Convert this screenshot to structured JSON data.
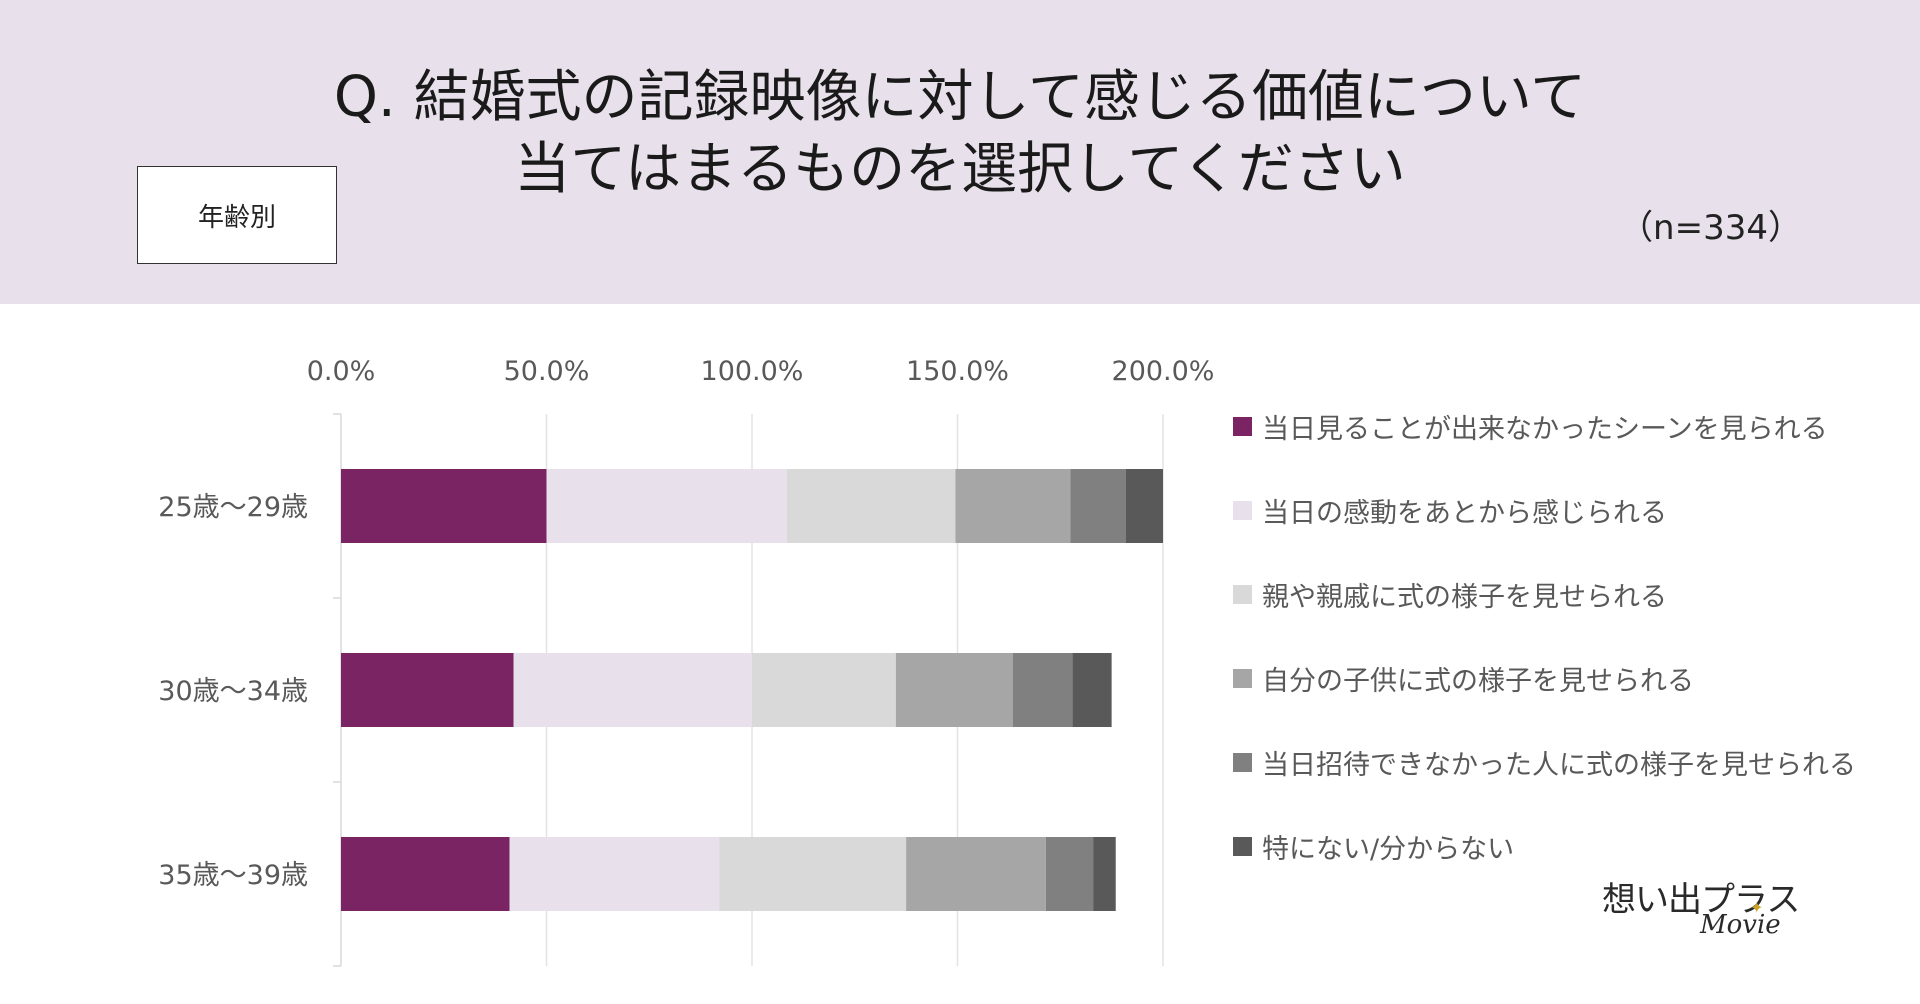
{
  "header": {
    "title_line1": "Q. 結婚式の記録映像に対して感じる価値について",
    "title_line2": "当てはまるものを選択してください",
    "filter_label": "年齢別",
    "sample_size": "（n=334）",
    "background_color": "#e8e1eb"
  },
  "logo": {
    "main_text": "想い出プラス",
    "sub_text": "Movie",
    "star_icon": "sparkle-icon"
  },
  "chart_data": {
    "type": "bar",
    "orientation": "horizontal",
    "stacked": true,
    "xlim": [
      0,
      200
    ],
    "x_ticks": [
      0,
      50,
      100,
      150,
      200
    ],
    "x_tick_labels": [
      "0.0%",
      "50.0%",
      "100.0%",
      "150.0%",
      "200.0%"
    ],
    "x_axis_position": "top",
    "grid": true,
    "legend_position": "right",
    "categories": [
      "25歳～29歳",
      "30歳～34歳",
      "35歳～39歳"
    ],
    "series": [
      {
        "name": "当日見ることが出来なかったシーンを見られる",
        "color": "#7b2464",
        "values": [
          50.0,
          42.0,
          41.0
        ]
      },
      {
        "name": "当日の感動をあとから感じられる",
        "color": "#e8e0eb",
        "values": [
          58.5,
          58.0,
          51.0
        ]
      },
      {
        "name": "親や親戚に式の様子を見せられる",
        "color": "#d9d9d9",
        "values": [
          41.0,
          35.0,
          45.5
        ]
      },
      {
        "name": "自分の子供に式の様子を見せられる",
        "color": "#a6a6a6",
        "values": [
          28.0,
          28.5,
          34.0
        ]
      },
      {
        "name": "当日招待できなかった人に式の様子を見せられる",
        "color": "#808080",
        "values": [
          13.5,
          14.5,
          11.5
        ]
      },
      {
        "name": "特にない/分からない",
        "color": "#595959",
        "values": [
          9.0,
          9.5,
          5.5
        ]
      }
    ]
  }
}
